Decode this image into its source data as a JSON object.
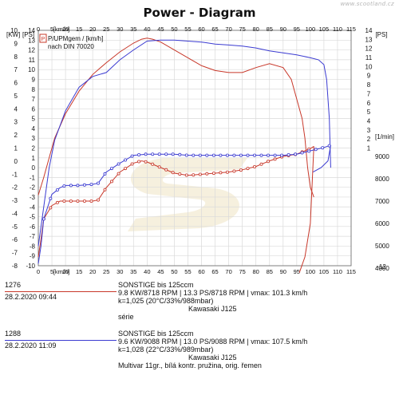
{
  "watermark": "www.scootland.cz",
  "chart_data": {
    "type": "line",
    "title": "Power - Diagram",
    "legend_text": "P/UPMgem / [km/h]",
    "legend_sub": "nach DIN 70020",
    "legend_icon": "P-icon",
    "x_axis": {
      "label": "[km/h]",
      "range": [
        0,
        115
      ],
      "ticks": [
        0,
        5,
        10,
        15,
        20,
        25,
        30,
        35,
        40,
        45,
        50,
        55,
        60,
        65,
        70,
        75,
        80,
        85,
        90,
        95,
        100,
        105,
        110,
        115
      ]
    },
    "y_left": {
      "label": "[KW]",
      "range": [
        -8,
        10
      ],
      "ticks": [
        10,
        9,
        8,
        7,
        6,
        5,
        4,
        3,
        2,
        1,
        0,
        -1,
        -2,
        -3,
        -4,
        -5,
        -6,
        -7,
        -8
      ]
    },
    "y_ps": {
      "label": "[PS]",
      "range": [
        -10,
        14
      ],
      "ticks": [
        14,
        13,
        12,
        11,
        10,
        9,
        8,
        7,
        6,
        5,
        4,
        3,
        2,
        1,
        0,
        -1,
        -2,
        -3,
        -4,
        -5,
        -6,
        -7,
        -8,
        -9,
        -10
      ]
    },
    "y_right_ps": {
      "label": "[PS]",
      "range": [
        -12,
        14
      ],
      "ticks": [
        14,
        13,
        12,
        11,
        10,
        9,
        8,
        7,
        6,
        5,
        4,
        3,
        2,
        1
      ]
    },
    "y_right_rpm": {
      "label": "[1/min]",
      "range": [
        3500,
        9500
      ],
      "ticks": [
        9000,
        8000,
        7000,
        6000,
        5000,
        4000
      ],
      "bottom_label": "-12"
    },
    "grid": true,
    "series": [
      {
        "name": "1276",
        "color": "#c8382a",
        "power_ps": {
          "x": [
            0,
            2,
            4,
            6,
            10,
            15,
            20,
            25,
            30,
            35,
            38,
            40,
            42,
            45,
            50,
            55,
            60,
            65,
            70,
            75,
            80,
            85,
            90,
            93,
            95,
            97,
            98,
            99,
            100,
            101.3
          ],
          "y": [
            -2.8,
            -1,
            1,
            3,
            5.5,
            7.8,
            9.5,
            10.7,
            11.8,
            12.7,
            13.1,
            13.2,
            13.1,
            12.8,
            12,
            11.2,
            10.4,
            9.9,
            9.7,
            9.7,
            10.2,
            10.6,
            10.2,
            9,
            7,
            5,
            3,
            0,
            -2,
            -3
          ]
        },
        "rpm": {
          "x": [
            0,
            1,
            2,
            5,
            8,
            10,
            15,
            20,
            22,
            25,
            30,
            35,
            38,
            40,
            45,
            50,
            55,
            60,
            65,
            70,
            75,
            80,
            85,
            90,
            95,
            100,
            101.3
          ],
          "y": [
            4500,
            5300,
            6200,
            6800,
            7000,
            7000,
            7000,
            7000,
            7050,
            7600,
            8300,
            8700,
            8800,
            8750,
            8500,
            8250,
            8150,
            8200,
            8250,
            8300,
            8400,
            8550,
            8800,
            9000,
            9100,
            9350,
            9450
          ]
        },
        "rpm_runout": {
          "x": [
            101.3,
            100,
            98,
            96
          ],
          "y": [
            9450,
            6000,
            4500,
            3800
          ]
        }
      },
      {
        "name": "1288",
        "color": "#3b3bd1",
        "power_ps": {
          "x": [
            0,
            2,
            4,
            6,
            10,
            15,
            20,
            25,
            30,
            35,
            40,
            45,
            50,
            55,
            60,
            65,
            70,
            75,
            80,
            85,
            90,
            95,
            100,
            103,
            105,
            106,
            107,
            107.5
          ],
          "y": [
            -8,
            -4,
            0,
            2.8,
            5.8,
            8.2,
            9.3,
            9.7,
            11,
            12,
            12.9,
            13,
            13,
            12.9,
            12.8,
            12.6,
            12.5,
            12.4,
            12.2,
            11.9,
            11.7,
            11.5,
            11.2,
            11,
            10.5,
            9,
            5,
            0
          ]
        },
        "rpm": {
          "x": [
            0,
            1,
            2,
            5,
            8,
            10,
            15,
            20,
            22,
            25,
            30,
            35,
            40,
            45,
            50,
            55,
            60,
            65,
            70,
            75,
            80,
            85,
            90,
            95,
            100,
            105,
            107.5
          ],
          "y": [
            4200,
            5000,
            6200,
            7300,
            7600,
            7700,
            7700,
            7750,
            7800,
            8300,
            8700,
            9050,
            9100,
            9100,
            9100,
            9050,
            9050,
            9050,
            9050,
            9050,
            9050,
            9050,
            9050,
            9100,
            9250,
            9400,
            9500
          ]
        },
        "rpm_runout": {
          "x": [
            107.5,
            106.5,
            104,
            101
          ],
          "y": [
            9500,
            8800,
            8500,
            8300
          ]
        }
      }
    ]
  },
  "runs": [
    {
      "id": "1276",
      "date": "28.2.2020  09:44",
      "color": "#c8382a",
      "lines": [
        "SONSTIGE bis     125ccm",
        "9.8 KW/8718 RPM  |  13.3 PS/8718 RPM  |  vmax: 101.3 km/h",
        "k=1,025 (20°C/33%/988mbar)",
        "Kawasaki J125",
        "série"
      ]
    },
    {
      "id": "1288",
      "date": "28.2.2020  11:09",
      "color": "#3b3bd1",
      "lines": [
        "SONSTIGE bis     125ccm",
        "9.6 KW/9088 RPM  |  13.0 PS/9088 RPM  |  vmax: 107.5 km/h",
        "k=1,028 (22°C/33%/989mbar)",
        "Kawasaki J125",
        "Multivar 11gr., bílá kontr. pružina, orig. řemen"
      ]
    }
  ]
}
